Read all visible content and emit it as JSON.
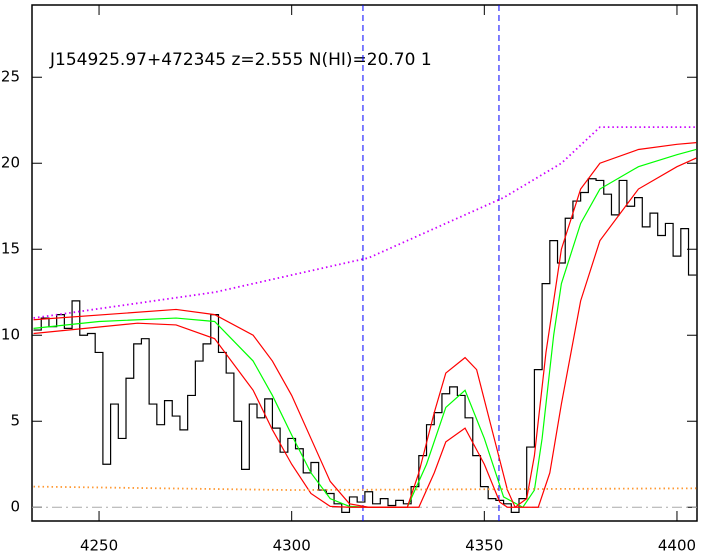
{
  "chart_data": {
    "type": "line",
    "annotation": "J154925.97+472345 z=2.555 N(HI)=20.70 1",
    "xlim": [
      4232.6,
      4405.2
    ],
    "ylim": [
      -0.8,
      29.2
    ],
    "xticks": [
      4250,
      4300,
      4350,
      4400
    ],
    "yticks": [
      0,
      5,
      10,
      15,
      20,
      25
    ],
    "vlines": [
      4318.5,
      4353.8
    ],
    "vline_color": "#0000ff",
    "zero_line_color": "#aaaaaa",
    "series": [
      {
        "color": "#000000",
        "style": "steps",
        "x": [
          4234,
          4236,
          4238,
          4240,
          4242,
          4244,
          4246,
          4248,
          4250,
          4252,
          4254,
          4256,
          4258,
          4260,
          4262,
          4264,
          4266,
          4268,
          4270,
          4272,
          4274,
          4276,
          4278,
          4280,
          4282,
          4284,
          4286,
          4288,
          4290,
          4292,
          4294,
          4296,
          4298,
          4300,
          4302,
          4304,
          4306,
          4308,
          4310,
          4312,
          4314,
          4316,
          4318,
          4320,
          4322,
          4324,
          4326,
          4328,
          4330,
          4332,
          4334,
          4336,
          4338,
          4340,
          4342,
          4344,
          4346,
          4348,
          4350,
          4352,
          4354,
          4356,
          4358,
          4360,
          4362,
          4364,
          4366,
          4368,
          4370,
          4372,
          4374,
          4376,
          4378,
          4380,
          4382,
          4384,
          4386,
          4388,
          4390,
          4392,
          4394,
          4396,
          4398,
          4400,
          4402,
          4404
        ],
        "values": [
          10.3,
          11.0,
          10.5,
          11.2,
          10.4,
          12.0,
          10.0,
          10.1,
          9.0,
          2.5,
          6.0,
          4.0,
          7.5,
          9.5,
          9.8,
          6.0,
          4.8,
          6.2,
          5.3,
          4.5,
          6.5,
          8.5,
          9.5,
          11.2,
          9.0,
          7.8,
          5.0,
          2.2,
          6.0,
          5.2,
          6.3,
          4.6,
          3.2,
          4.0,
          3.4,
          2.0,
          2.6,
          1.0,
          0.8,
          0.2,
          -0.3,
          0.6,
          0.3,
          0.9,
          0.2,
          0.5,
          0.1,
          0.4,
          0.2,
          1.2,
          3.0,
          4.8,
          5.5,
          6.6,
          7.0,
          6.5,
          5.2,
          3.0,
          1.2,
          0.5,
          0.4,
          0.2,
          -0.3,
          0.5,
          3.5,
          8.0,
          13.0,
          15.5,
          14.2,
          16.8,
          17.8,
          18.3,
          19.1,
          19.0,
          18.2,
          17.0,
          19.0,
          17.5,
          18.0,
          16.3,
          17.1,
          15.8,
          16.5,
          14.6,
          16.2,
          13.5
        ]
      },
      {
        "color": "#00ff00",
        "style": "solid",
        "x": [
          4233,
          4250,
          4270,
          4280,
          4290,
          4295,
          4300,
          4305,
          4310,
          4315,
          4320,
          4330,
          4335,
          4340,
          4345,
          4350,
          4355,
          4360,
          4363,
          4365,
          4368,
          4370,
          4375,
          4380,
          4390,
          4400,
          4405
        ],
        "values": [
          10.4,
          10.8,
          11.0,
          10.8,
          8.5,
          6.5,
          4.2,
          2.0,
          0.5,
          0.05,
          0,
          0,
          2.5,
          5.8,
          6.8,
          4.0,
          0.6,
          0,
          1,
          4,
          10,
          13,
          16.5,
          18.5,
          19.8,
          20.5,
          20.8
        ]
      },
      {
        "color": "#ff0000",
        "style": "solid",
        "x": [
          4233,
          4270,
          4280,
          4290,
          4295,
          4300,
          4305,
          4310,
          4315,
          4320,
          4330,
          4333,
          4337,
          4340,
          4345,
          4348,
          4352,
          4356,
          4358,
          4361,
          4363,
          4366,
          4370,
          4375,
          4380,
          4390,
          4400,
          4405
        ],
        "values": [
          10.9,
          11.5,
          11.2,
          10.0,
          8.5,
          6.5,
          4.0,
          1.5,
          0.2,
          0,
          0,
          2.0,
          5.5,
          7.8,
          8.7,
          8.0,
          4.5,
          1.0,
          0,
          0.5,
          3,
          9,
          15,
          18.5,
          20,
          20.8,
          21.1,
          21.2
        ]
      },
      {
        "color": "#ff0000",
        "style": "solid",
        "x": [
          4233,
          4260,
          4270,
          4280,
          4290,
          4295,
          4300,
          4305,
          4310,
          4315,
          4333,
          4337,
          4340,
          4345,
          4350,
          4354,
          4356,
          4364,
          4367,
          4370,
          4375,
          4380,
          4390,
          4400,
          4405
        ],
        "values": [
          10.1,
          10.7,
          10.6,
          9.8,
          6.8,
          4.5,
          2.5,
          0.8,
          0.05,
          0,
          0,
          2.0,
          3.8,
          4.6,
          2.5,
          0.3,
          0,
          0,
          2,
          6,
          12,
          15.5,
          18.5,
          19.8,
          20.3
        ]
      },
      {
        "color": "#cc00ff",
        "style": "dotted",
        "x": [
          4233,
          4280,
          4300,
          4320,
          4340,
          4355,
          4370,
          4380,
          4405
        ],
        "values": [
          11,
          12.5,
          13.5,
          14.5,
          16.5,
          18,
          20,
          22.1,
          22.1
        ]
      },
      {
        "color": "#ff9933",
        "style": "dotted",
        "x": [
          4233,
          4300,
          4405
        ],
        "values": [
          1.2,
          1.0,
          1.1
        ]
      }
    ]
  }
}
